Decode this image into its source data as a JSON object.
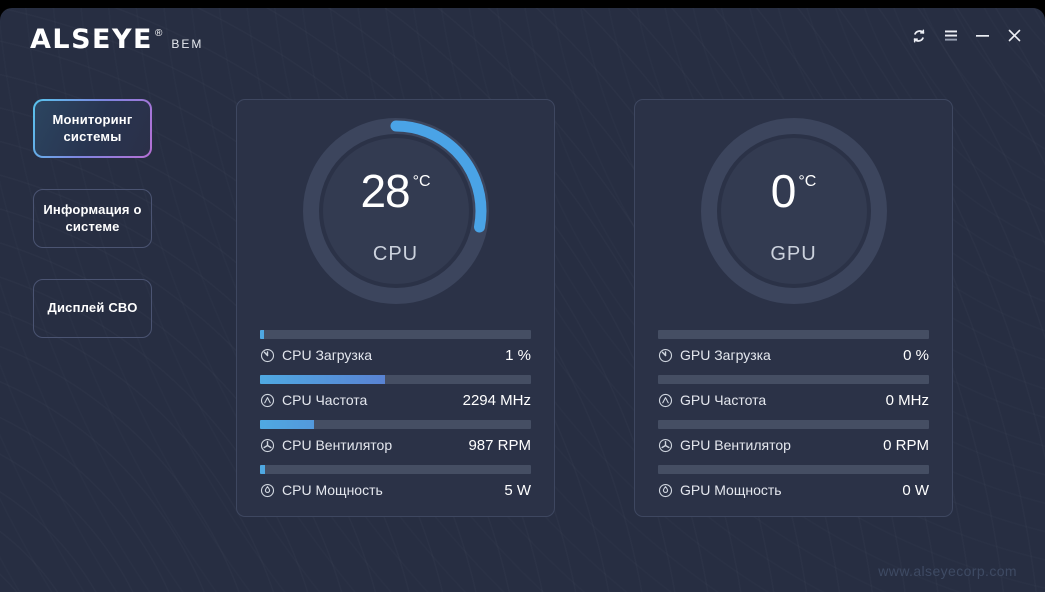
{
  "titlebar": {
    "logo_text": "ALSEYE",
    "logo_mark": "®",
    "logo_suffix": "BEM",
    "controls": {
      "refresh": "refresh-icon",
      "menu": "menu-icon",
      "minimize": "minimize-icon",
      "close": "close-icon"
    }
  },
  "sidebar": {
    "items": [
      {
        "label": "Мониторинг системы",
        "active": true
      },
      {
        "label": "Информация о системе",
        "active": false
      },
      {
        "label": "Дисплей СВО",
        "active": false
      }
    ]
  },
  "cards": [
    {
      "name": "CPU",
      "temperature": "28",
      "unit": "°C",
      "gauge_percent": 28,
      "stats": [
        {
          "icon": "load-icon",
          "label": "CPU Загрузка",
          "value": "1 %",
          "bar_percent": 1.5
        },
        {
          "icon": "frequency-icon",
          "label": "CPU Частота",
          "value": "2294 MHz",
          "bar_percent": 46
        },
        {
          "icon": "fan-icon",
          "label": "CPU Вентилятор",
          "value": "987 RPM",
          "bar_percent": 20
        },
        {
          "icon": "power-icon",
          "label": "CPU Мощность",
          "value": "5 W",
          "bar_percent": 2
        }
      ]
    },
    {
      "name": "GPU",
      "temperature": "0",
      "unit": "°C",
      "gauge_percent": 0,
      "stats": [
        {
          "icon": "load-icon",
          "label": "GPU Загрузка",
          "value": "0 %",
          "bar_percent": 0
        },
        {
          "icon": "frequency-icon",
          "label": "GPU Частота",
          "value": "0 MHz",
          "bar_percent": 0
        },
        {
          "icon": "fan-icon",
          "label": "GPU Вентилятор",
          "value": "0 RPM",
          "bar_percent": 0
        },
        {
          "icon": "power-icon",
          "label": "GPU Мощность",
          "value": "0 W",
          "bar_percent": 0
        }
      ]
    }
  ],
  "footer": {
    "website": "www.alseyecorp.com"
  },
  "colors": {
    "background": "#272e42",
    "card_background": "#2b3247",
    "bar_track": "#454e63",
    "accent_arc": "#4aa3e6",
    "bar_gradient": [
      "#4fa9e2",
      "#5b7bd0",
      "#b873c8"
    ],
    "active_border": [
      "#58c4ec",
      "#b66fd4"
    ]
  }
}
